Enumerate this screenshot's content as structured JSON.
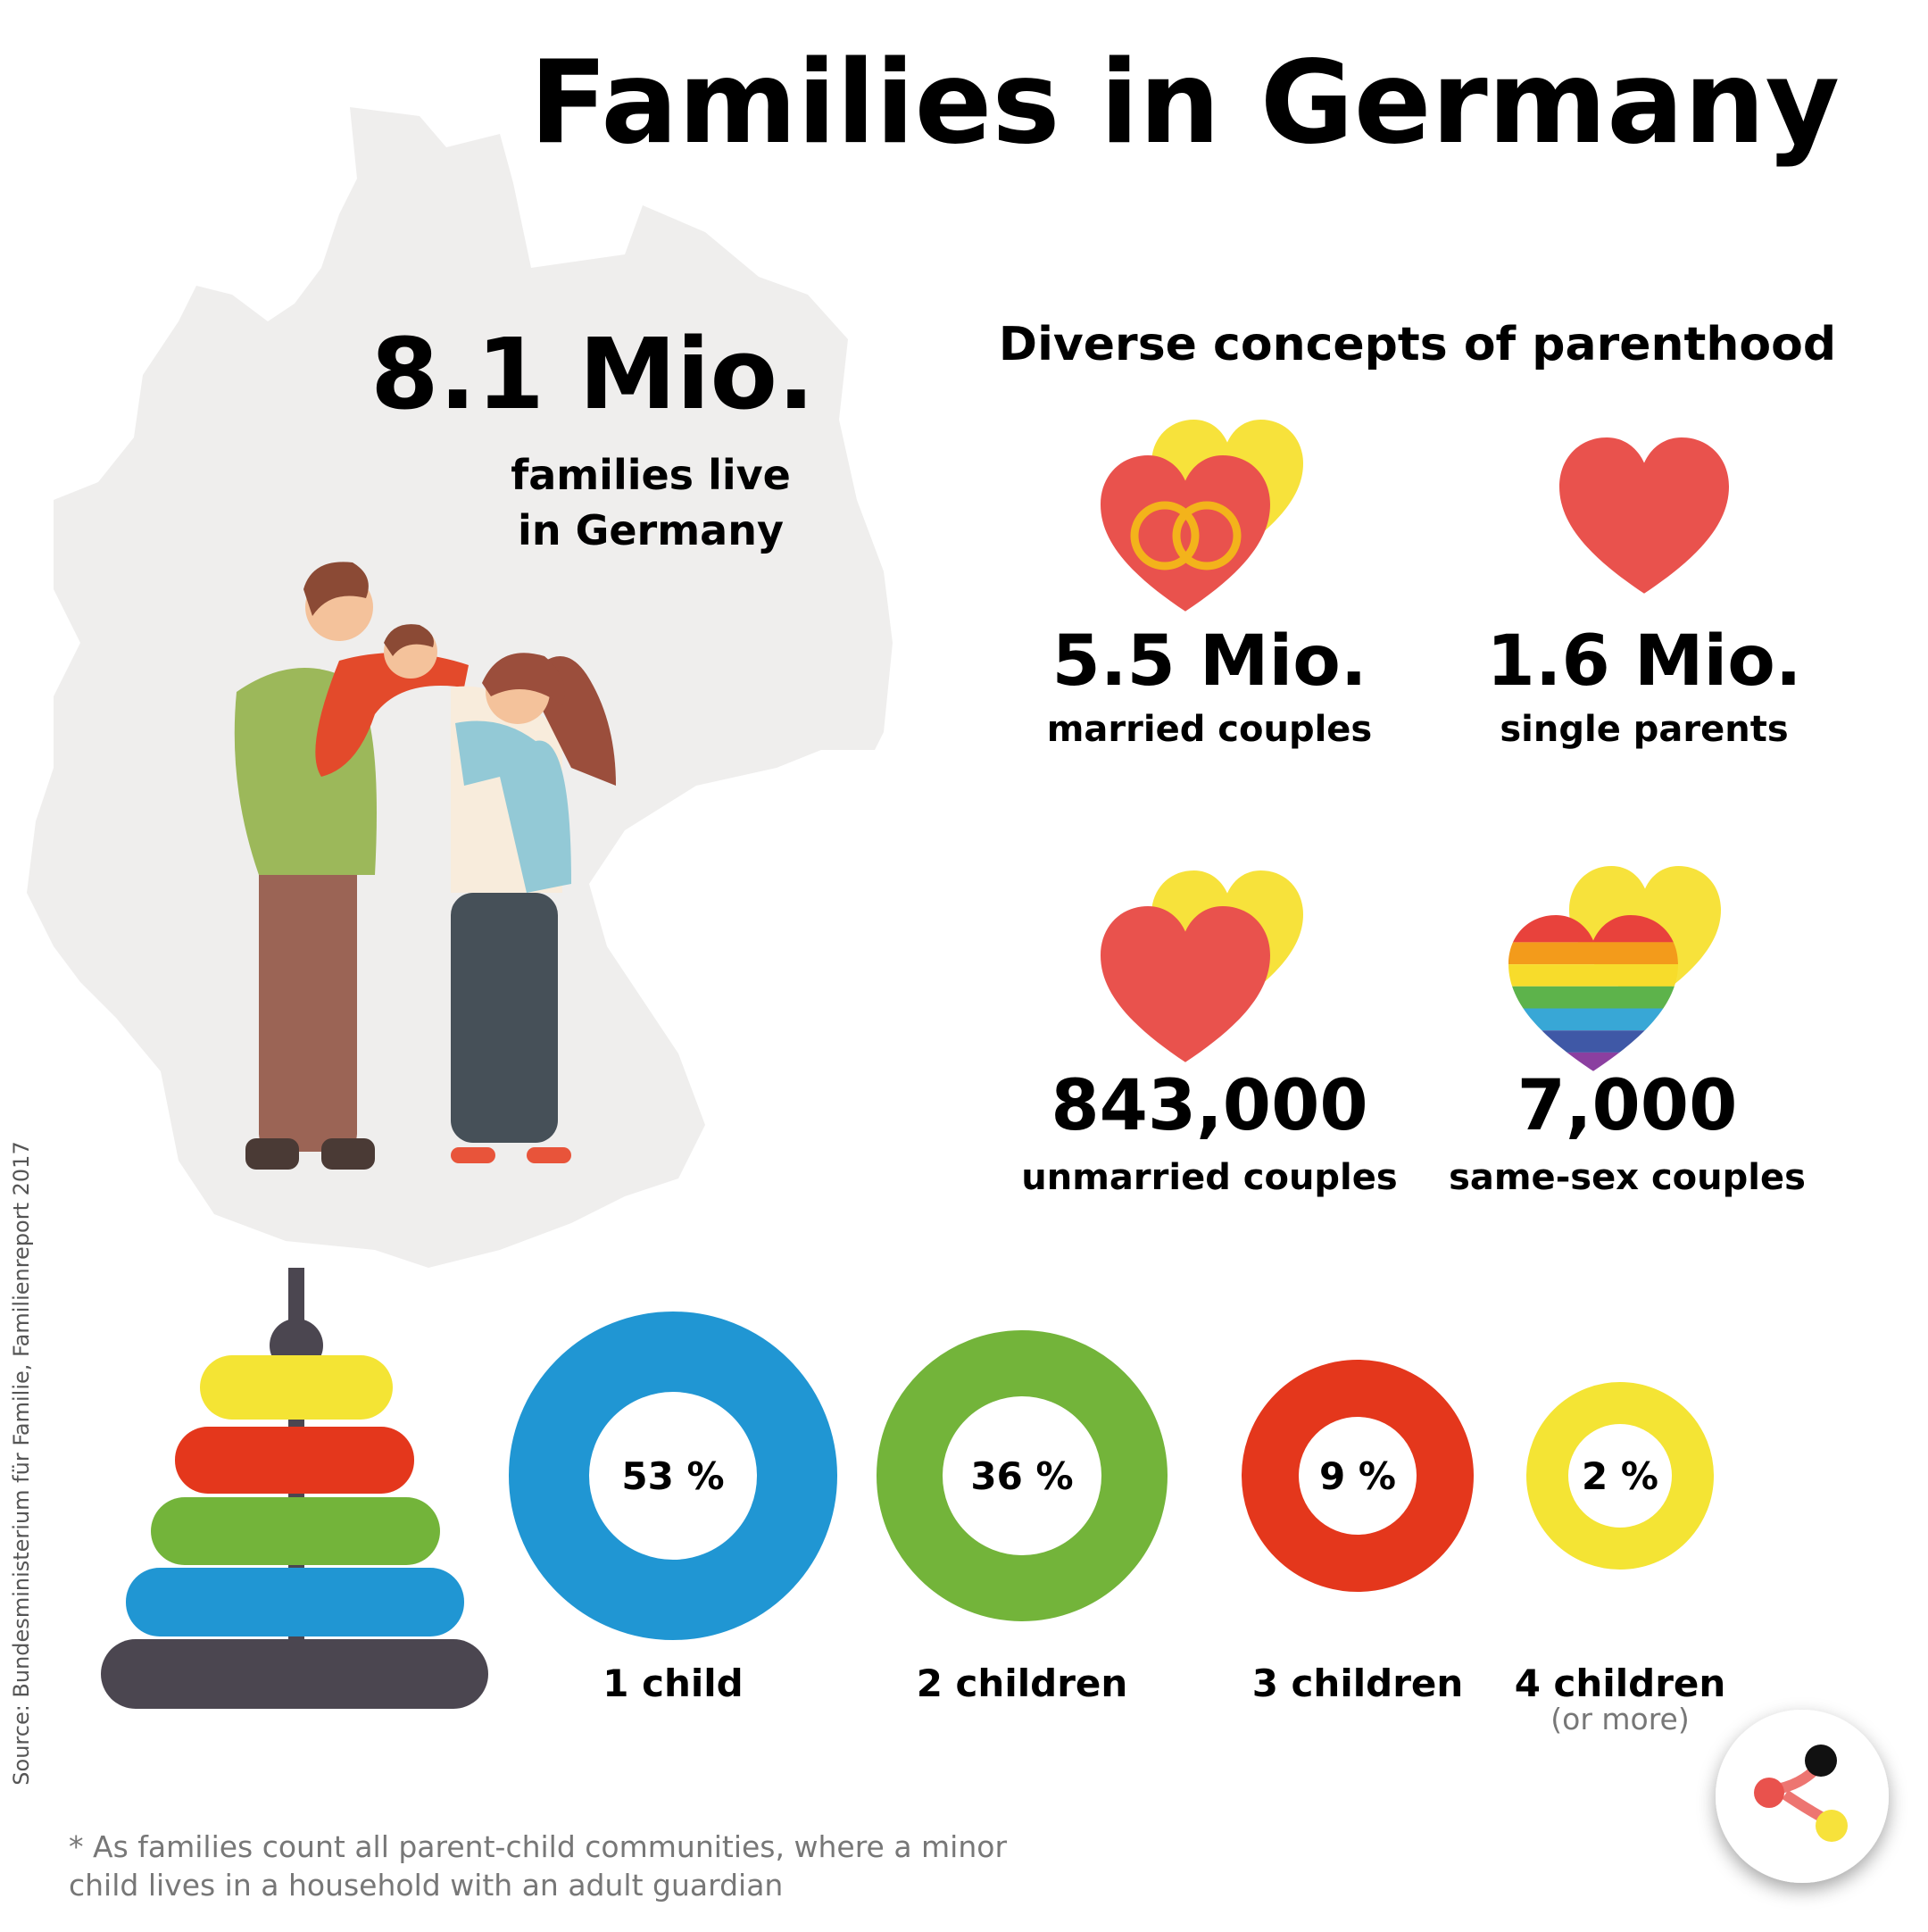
{
  "title": "Families in Germany",
  "headline": {
    "value": "8.1 Mio.",
    "label_lines": [
      "families live",
      "in Germany"
    ]
  },
  "parenthood": {
    "title": "Diverse concepts of parenthood",
    "items": [
      {
        "value": "5.5 Mio.",
        "label": "married couples"
      },
      {
        "value": "1.6 Mio.",
        "label": "single parents"
      },
      {
        "value": "843,000",
        "label": "unmarried couples"
      },
      {
        "value": "7,000",
        "label": "same-sex couples"
      }
    ]
  },
  "children": {
    "items": [
      {
        "percent": "53 %",
        "label": "1 child"
      },
      {
        "percent": "36 %",
        "label": "2 children"
      },
      {
        "percent": "9 %",
        "label": "3 children"
      },
      {
        "percent": "2 %",
        "label": "4 children",
        "note": "(or more)"
      }
    ]
  },
  "source": "Source: Bundesministerium für Familie, Familienreport 2017",
  "footnote_lines": [
    "* As families count all parent-child communities, where a minor",
    "child lives in a household with an adult guardian"
  ]
}
